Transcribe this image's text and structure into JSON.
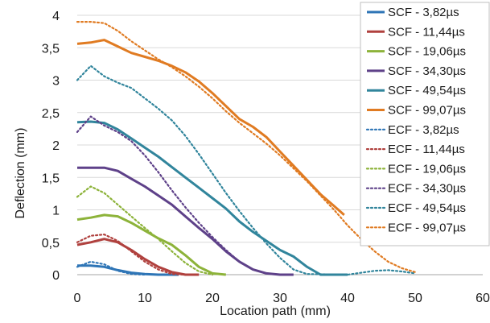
{
  "chart_data": {
    "type": "line",
    "title": "",
    "xlabel": "Location path (mm)",
    "ylabel": "Deflection (mm)",
    "xlim": [
      0,
      60
    ],
    "ylim": [
      0,
      4
    ],
    "x_ticks": [
      "0",
      "10",
      "20",
      "30",
      "40",
      "50",
      "60"
    ],
    "y_ticks": [
      "0",
      "0,5",
      "1",
      "1,5",
      "2",
      "2,5",
      "3",
      "3,5",
      "4"
    ],
    "grid": "horizontal",
    "legend_position": "right",
    "series": [
      {
        "name": "SCF - 3,82µs",
        "color": "#2e75b6",
        "style": "solid",
        "points": [
          [
            0,
            0.14
          ],
          [
            2,
            0.14
          ],
          [
            4,
            0.12
          ],
          [
            6,
            0.07
          ],
          [
            8,
            0.03
          ],
          [
            10,
            0.01
          ],
          [
            12,
            0
          ],
          [
            15,
            0
          ]
        ]
      },
      {
        "name": "SCF - 11,44µs",
        "color": "#b0413e",
        "style": "solid",
        "points": [
          [
            0,
            0.46
          ],
          [
            2,
            0.5
          ],
          [
            4,
            0.55
          ],
          [
            6,
            0.5
          ],
          [
            8,
            0.38
          ],
          [
            10,
            0.24
          ],
          [
            12,
            0.12
          ],
          [
            14,
            0.04
          ],
          [
            16,
            0
          ],
          [
            18,
            0
          ]
        ]
      },
      {
        "name": "SCF - 19,06µs",
        "color": "#8db33a",
        "style": "solid",
        "points": [
          [
            0,
            0.85
          ],
          [
            2,
            0.88
          ],
          [
            4,
            0.92
          ],
          [
            6,
            0.9
          ],
          [
            8,
            0.8
          ],
          [
            10,
            0.68
          ],
          [
            12,
            0.56
          ],
          [
            14,
            0.46
          ],
          [
            16,
            0.3
          ],
          [
            18,
            0.12
          ],
          [
            20,
            0.02
          ],
          [
            22,
            0
          ]
        ]
      },
      {
        "name": "SCF - 34,30µs",
        "color": "#5e4189",
        "style": "solid",
        "points": [
          [
            0,
            1.65
          ],
          [
            2,
            1.65
          ],
          [
            4,
            1.65
          ],
          [
            6,
            1.6
          ],
          [
            8,
            1.48
          ],
          [
            10,
            1.36
          ],
          [
            12,
            1.22
          ],
          [
            14,
            1.08
          ],
          [
            16,
            0.9
          ],
          [
            18,
            0.72
          ],
          [
            20,
            0.55
          ],
          [
            22,
            0.36
          ],
          [
            24,
            0.2
          ],
          [
            26,
            0.08
          ],
          [
            28,
            0.02
          ],
          [
            30,
            0
          ],
          [
            32,
            0
          ]
        ]
      },
      {
        "name": "SCF - 49,54µs",
        "color": "#31859c",
        "style": "solid",
        "points": [
          [
            0,
            2.35
          ],
          [
            2,
            2.36
          ],
          [
            4,
            2.34
          ],
          [
            6,
            2.24
          ],
          [
            8,
            2.1
          ],
          [
            10,
            1.96
          ],
          [
            12,
            1.82
          ],
          [
            14,
            1.66
          ],
          [
            16,
            1.5
          ],
          [
            18,
            1.34
          ],
          [
            20,
            1.18
          ],
          [
            22,
            1.02
          ],
          [
            24,
            0.82
          ],
          [
            26,
            0.66
          ],
          [
            28,
            0.52
          ],
          [
            30,
            0.38
          ],
          [
            32,
            0.28
          ],
          [
            34,
            0.12
          ],
          [
            36,
            0
          ],
          [
            40,
            0
          ]
        ]
      },
      {
        "name": "SCF - 99,07µs",
        "color": "#e07b22",
        "style": "solid",
        "points": [
          [
            0,
            3.56
          ],
          [
            2,
            3.58
          ],
          [
            4,
            3.62
          ],
          [
            6,
            3.52
          ],
          [
            8,
            3.42
          ],
          [
            10,
            3.36
          ],
          [
            12,
            3.3
          ],
          [
            14,
            3.22
          ],
          [
            16,
            3.12
          ],
          [
            18,
            2.98
          ],
          [
            20,
            2.8
          ],
          [
            22,
            2.6
          ],
          [
            24,
            2.4
          ],
          [
            26,
            2.28
          ],
          [
            28,
            2.12
          ],
          [
            30,
            1.9
          ],
          [
            32,
            1.68
          ],
          [
            34,
            1.46
          ],
          [
            36,
            1.24
          ],
          [
            38,
            1.06
          ],
          [
            39.5,
            0.92
          ]
        ]
      },
      {
        "name": "ECF - 3,82µs",
        "color": "#2e75b6",
        "style": "dotted",
        "points": [
          [
            0,
            0.12
          ],
          [
            2,
            0.2
          ],
          [
            4,
            0.16
          ],
          [
            6,
            0.06
          ],
          [
            8,
            0.01
          ],
          [
            10,
            0
          ]
        ]
      },
      {
        "name": "ECF - 11,44µs",
        "color": "#b0413e",
        "style": "dotted",
        "points": [
          [
            0,
            0.5
          ],
          [
            2,
            0.6
          ],
          [
            4,
            0.62
          ],
          [
            6,
            0.52
          ],
          [
            8,
            0.36
          ],
          [
            10,
            0.2
          ],
          [
            12,
            0.08
          ],
          [
            14,
            0.01
          ],
          [
            16,
            0
          ]
        ]
      },
      {
        "name": "ECF - 19,06µs",
        "color": "#8db33a",
        "style": "dotted",
        "points": [
          [
            0,
            1.2
          ],
          [
            2,
            1.36
          ],
          [
            4,
            1.26
          ],
          [
            6,
            1.08
          ],
          [
            8,
            0.9
          ],
          [
            10,
            0.72
          ],
          [
            12,
            0.55
          ],
          [
            14,
            0.36
          ],
          [
            16,
            0.18
          ],
          [
            18,
            0.05
          ],
          [
            20,
            0
          ]
        ]
      },
      {
        "name": "ECF - 34,30µs",
        "color": "#5e4189",
        "style": "dotted",
        "points": [
          [
            0,
            2.2
          ],
          [
            2,
            2.44
          ],
          [
            4,
            2.3
          ],
          [
            6,
            2.2
          ],
          [
            8,
            2.06
          ],
          [
            10,
            1.84
          ],
          [
            12,
            1.58
          ],
          [
            14,
            1.3
          ],
          [
            16,
            1.04
          ],
          [
            18,
            0.8
          ],
          [
            20,
            0.58
          ],
          [
            22,
            0.38
          ],
          [
            24,
            0.2
          ],
          [
            26,
            0.08
          ],
          [
            28,
            0.02
          ],
          [
            30,
            0
          ]
        ]
      },
      {
        "name": "ECF - 49,54µs",
        "color": "#31859c",
        "style": "dotted",
        "points": [
          [
            0,
            3.0
          ],
          [
            2,
            3.22
          ],
          [
            4,
            3.06
          ],
          [
            6,
            2.96
          ],
          [
            8,
            2.88
          ],
          [
            10,
            2.72
          ],
          [
            12,
            2.56
          ],
          [
            14,
            2.38
          ],
          [
            16,
            2.14
          ],
          [
            18,
            1.86
          ],
          [
            20,
            1.56
          ],
          [
            22,
            1.26
          ],
          [
            24,
            0.98
          ],
          [
            26,
            0.72
          ],
          [
            28,
            0.48
          ],
          [
            30,
            0.26
          ],
          [
            32,
            0.08
          ],
          [
            34,
            0.01
          ],
          [
            40,
            0
          ],
          [
            44,
            0.06
          ],
          [
            46,
            0.07
          ],
          [
            48,
            0.05
          ],
          [
            50,
            0.02
          ]
        ]
      },
      {
        "name": "ECF - 99,07µs",
        "color": "#e07b22",
        "style": "dotted",
        "points": [
          [
            0,
            3.9
          ],
          [
            2,
            3.9
          ],
          [
            4,
            3.88
          ],
          [
            6,
            3.76
          ],
          [
            8,
            3.6
          ],
          [
            10,
            3.46
          ],
          [
            12,
            3.32
          ],
          [
            14,
            3.2
          ],
          [
            16,
            3.06
          ],
          [
            18,
            2.9
          ],
          [
            20,
            2.72
          ],
          [
            22,
            2.52
          ],
          [
            24,
            2.34
          ],
          [
            26,
            2.18
          ],
          [
            28,
            2.02
          ],
          [
            30,
            1.84
          ],
          [
            32,
            1.64
          ],
          [
            34,
            1.44
          ],
          [
            36,
            1.22
          ],
          [
            38,
            1.0
          ],
          [
            40,
            0.76
          ],
          [
            42,
            0.55
          ],
          [
            44,
            0.36
          ],
          [
            46,
            0.2
          ],
          [
            48,
            0.1
          ],
          [
            50,
            0.04
          ]
        ]
      }
    ]
  }
}
